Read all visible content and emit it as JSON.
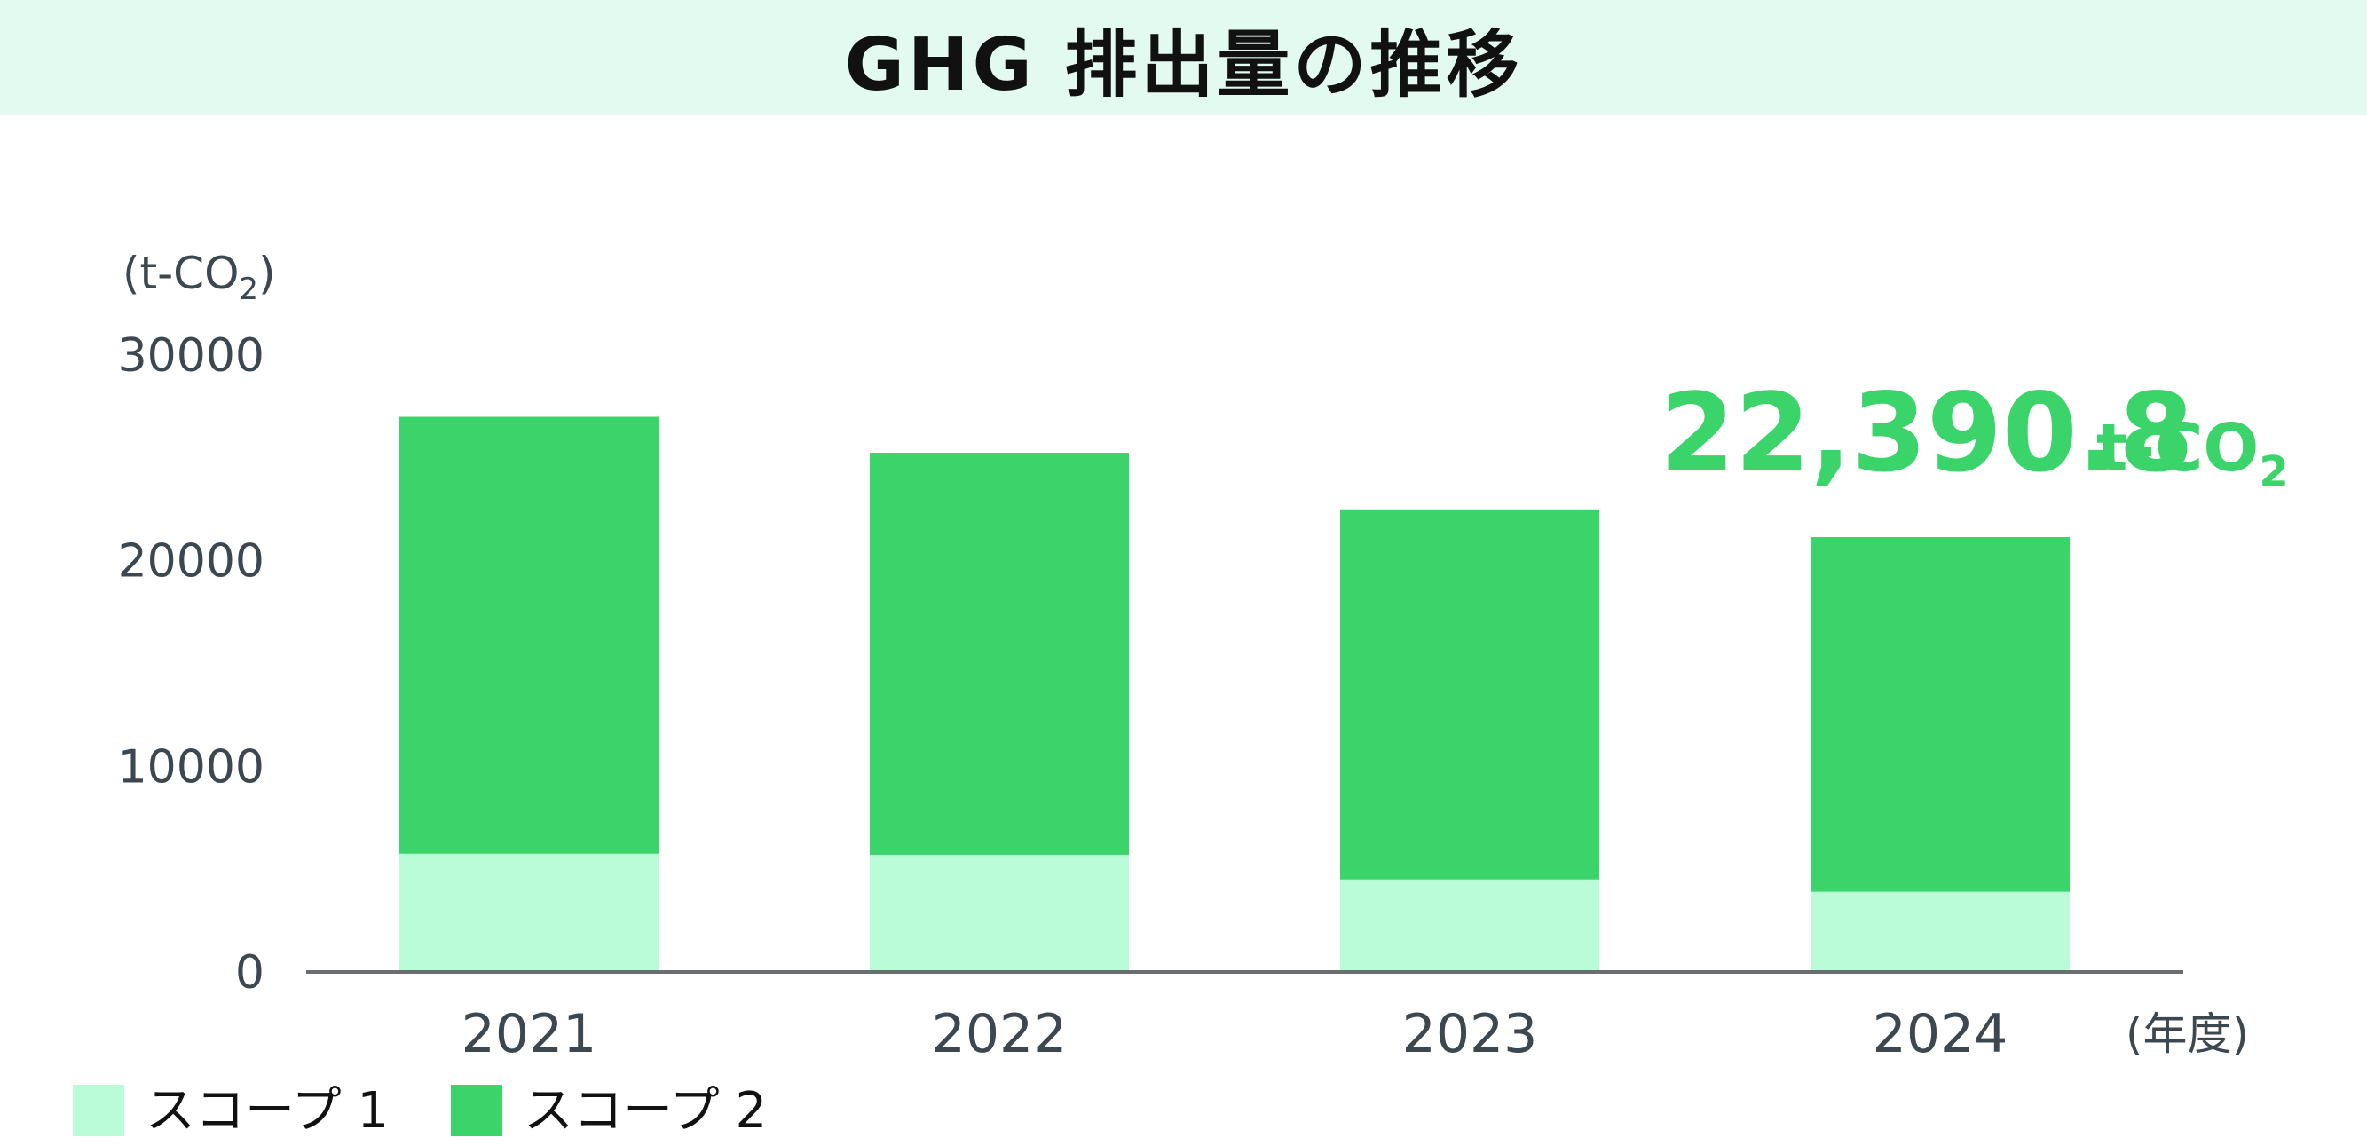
{
  "colors": {
    "scope1": "#bbfcd8",
    "scope2": "#3bd46b",
    "axis": "#6b6e70",
    "text": "#3d4750",
    "callout": "#3bd46b",
    "title_bg": "#e3faf0"
  },
  "chart_data": {
    "type": "bar",
    "stacked": true,
    "title": "GHG 排出量の推移",
    "ylabel": "(t-CO₂)",
    "xlabel": "(年度)",
    "ylim": [
      0,
      30000
    ],
    "yticks": [
      0,
      10000,
      20000,
      30000
    ],
    "categories": [
      "2021",
      "2022",
      "2023",
      "2024"
    ],
    "series": [
      {
        "name": "スコープ 1",
        "values": [
          5750,
          5700,
          4500,
          3900
        ]
      },
      {
        "name": "スコープ 2",
        "values": [
          21250,
          19550,
          18000,
          17250
        ]
      }
    ],
    "annotation": {
      "value": "22,390.8",
      "unit": "t-CO",
      "unit_sub": "2"
    },
    "legend": "bottom-left",
    "grid": false
  }
}
